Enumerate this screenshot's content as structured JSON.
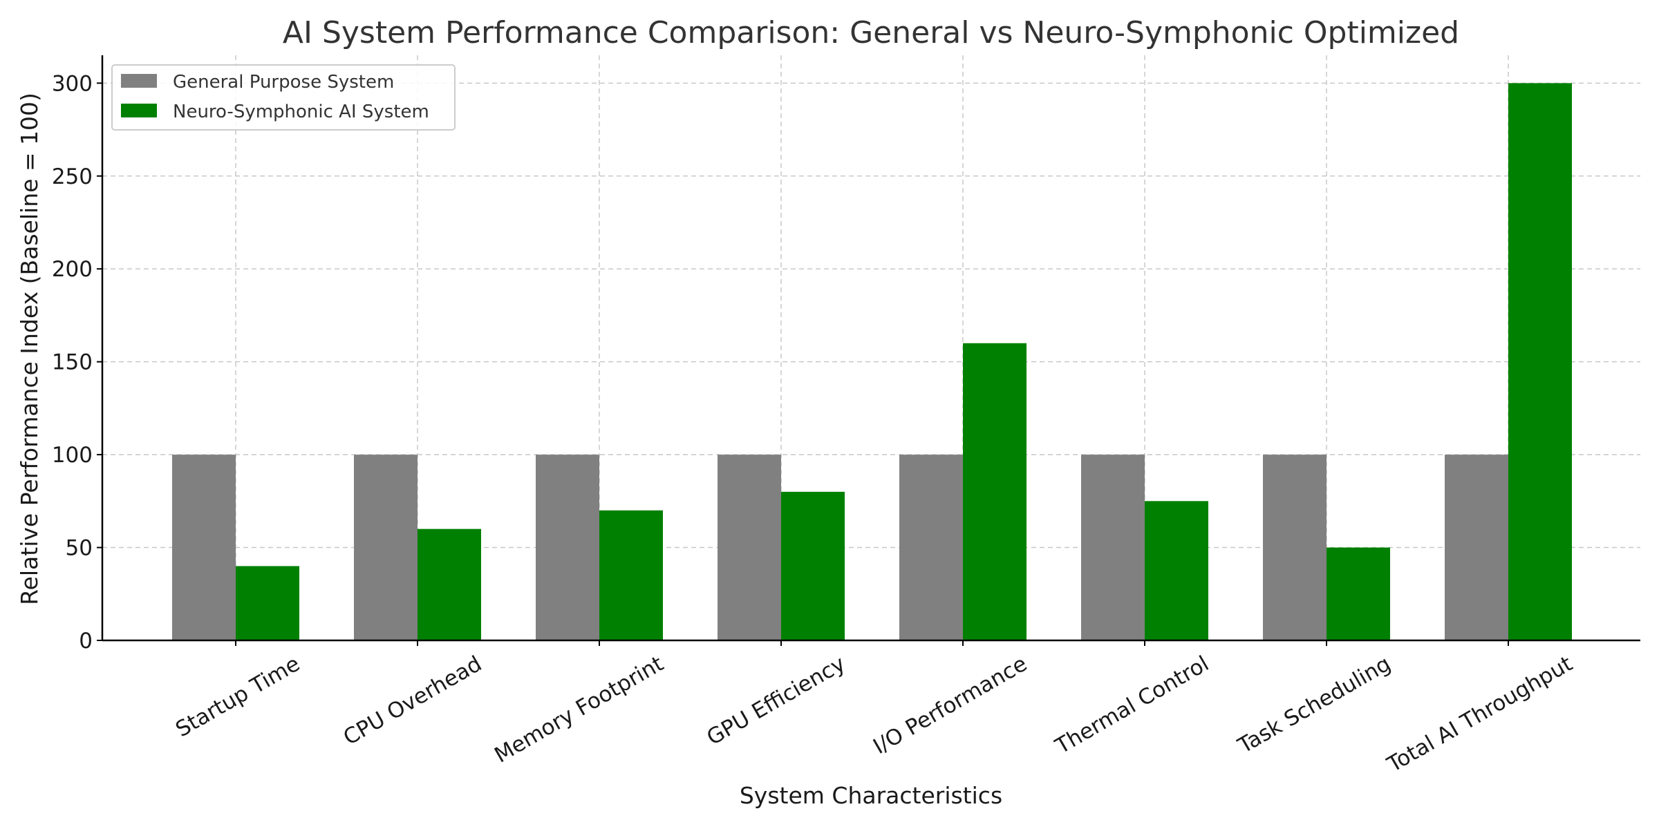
{
  "chart_data": {
    "type": "bar",
    "title": "AI System Performance Comparison: General vs Neuro-Symphonic Optimized",
    "xlabel": "System Characteristics",
    "ylabel": "Relative Performance Index (Baseline = 100)",
    "categories": [
      "Startup Time",
      "CPU Overhead",
      "Memory Footprint",
      "GPU Efficiency",
      "I/O Performance",
      "Thermal Control",
      "Task Scheduling",
      "Total AI Throughput"
    ],
    "series": [
      {
        "name": "General Purpose System",
        "color": "#808080",
        "values": [
          100,
          100,
          100,
          100,
          100,
          100,
          100,
          100
        ]
      },
      {
        "name": "Neuro-Symphonic AI System",
        "color": "#008000",
        "values": [
          40,
          60,
          70,
          80,
          160,
          75,
          50,
          300
        ]
      }
    ],
    "ylim": [
      0,
      315
    ],
    "yticks": [
      0,
      50,
      100,
      150,
      200,
      250,
      300
    ],
    "grid": true,
    "legend_position": "top-left"
  }
}
